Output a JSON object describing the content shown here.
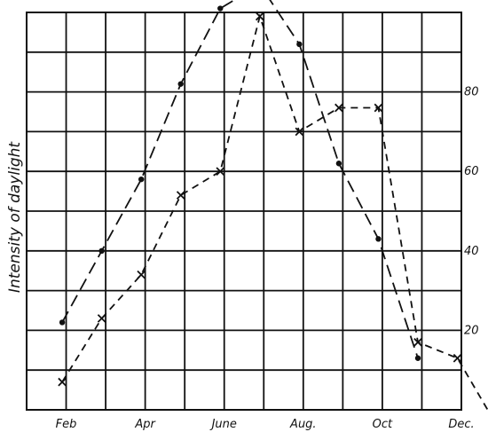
{
  "chart_data": {
    "type": "line",
    "xlabel": "",
    "ylabel": "Intensity of daylight",
    "x_tick_labels": [
      "Feb",
      "Apr",
      "June",
      "Aug.",
      "Oct",
      "Dec."
    ],
    "y_tick_labels": [
      "20",
      "40",
      "60",
      "80"
    ],
    "y_tick_values": [
      20,
      40,
      60,
      80
    ],
    "ylim": [
      -10,
      100
    ],
    "grid": true,
    "series": [
      {
        "marker": "dot",
        "line_style": "long-dash",
        "points": [
          {
            "x": 1.9,
            "y": 22
          },
          {
            "x": 2.9,
            "y": 40
          },
          {
            "x": 3.9,
            "y": 58
          },
          {
            "x": 4.9,
            "y": 82
          },
          {
            "x": 5.9,
            "y": 101
          },
          {
            "x": 6.9,
            "y": 107
          },
          {
            "x": 7.9,
            "y": 92
          },
          {
            "x": 8.9,
            "y": 62
          },
          {
            "x": 9.9,
            "y": 43
          },
          {
            "x": 10.9,
            "y": 13
          }
        ]
      },
      {
        "marker": "x",
        "line_style": "short-dash",
        "points": [
          {
            "x": 1.9,
            "y": 7
          },
          {
            "x": 2.9,
            "y": 23
          },
          {
            "x": 3.9,
            "y": 34
          },
          {
            "x": 4.9,
            "y": 54
          },
          {
            "x": 5.9,
            "y": 60
          },
          {
            "x": 6.9,
            "y": 99
          },
          {
            "x": 7.9,
            "y": 70
          },
          {
            "x": 8.9,
            "y": 76
          },
          {
            "x": 9.9,
            "y": 76
          },
          {
            "x": 10.9,
            "y": 17
          },
          {
            "x": 11.9,
            "y": 13
          },
          {
            "x": 12.9,
            "y": -4
          }
        ]
      }
    ]
  }
}
